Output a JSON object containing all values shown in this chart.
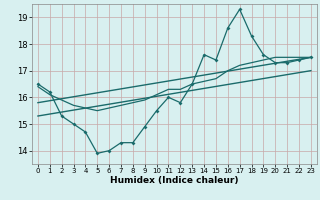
{
  "title": "",
  "xlabel": "Humidex (Indice chaleur)",
  "bg_color": "#d8f0f0",
  "grid_color": "#c8a8a8",
  "line_color": "#1a6b6b",
  "xlim": [
    -0.5,
    23.5
  ],
  "ylim": [
    13.5,
    19.5
  ],
  "yticks": [
    14,
    15,
    16,
    17,
    18,
    19
  ],
  "xticks": [
    0,
    1,
    2,
    3,
    4,
    5,
    6,
    7,
    8,
    9,
    10,
    11,
    12,
    13,
    14,
    15,
    16,
    17,
    18,
    19,
    20,
    21,
    22,
    23
  ],
  "series1_x": [
    0,
    1,
    2,
    3,
    4,
    5,
    6,
    7,
    8,
    9,
    10,
    11,
    12,
    13,
    14,
    15,
    16,
    17,
    18,
    19,
    20,
    21,
    22,
    23
  ],
  "series1_y": [
    16.5,
    16.2,
    15.3,
    15.0,
    14.7,
    13.9,
    14.0,
    14.3,
    14.3,
    14.9,
    15.5,
    16.0,
    15.8,
    16.5,
    17.6,
    17.4,
    18.6,
    19.3,
    18.3,
    17.6,
    17.3,
    17.3,
    17.4,
    17.5
  ],
  "series2_x": [
    0,
    1,
    2,
    3,
    4,
    5,
    6,
    7,
    8,
    9,
    10,
    11,
    12,
    13,
    14,
    15,
    16,
    17,
    18,
    19,
    20,
    21,
    22,
    23
  ],
  "series2_y": [
    16.4,
    16.1,
    15.9,
    15.7,
    15.6,
    15.5,
    15.6,
    15.7,
    15.8,
    15.9,
    16.1,
    16.3,
    16.3,
    16.5,
    16.6,
    16.7,
    17.0,
    17.2,
    17.3,
    17.4,
    17.5,
    17.5,
    17.5,
    17.5
  ],
  "trend1_x": [
    0,
    23
  ],
  "trend1_y": [
    15.3,
    17.0
  ],
  "trend2_x": [
    0,
    23
  ],
  "trend2_y": [
    15.8,
    17.5
  ]
}
